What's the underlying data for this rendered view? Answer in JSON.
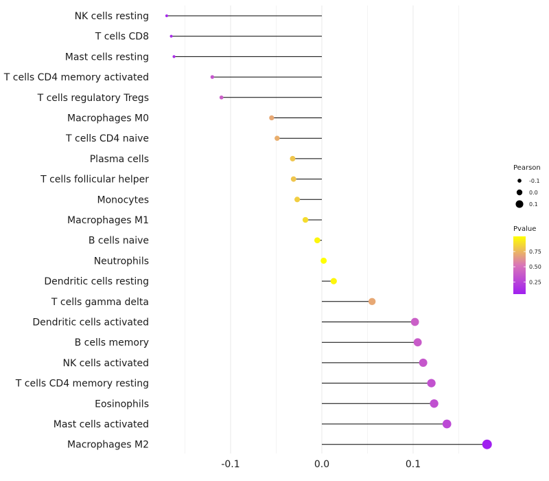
{
  "chart_data": {
    "type": "lollipop",
    "x_ticks": [
      -0.1,
      0.0,
      0.1
    ],
    "x_tick_labels": [
      "-0.1",
      "0.0",
      "0.1"
    ],
    "xlim": [
      -0.17,
      0.185
    ],
    "categories": [
      "NK cells resting",
      "T cells CD8",
      "Mast cells resting",
      "T cells CD4 memory activated",
      "T cells regulatory  Tregs",
      "Macrophages M0",
      "T cells CD4 naive",
      "Plasma cells",
      "T cells follicular helper",
      "Monocytes",
      "Macrophages M1",
      "B cells naive",
      "Neutrophils",
      "Dendritic cells resting",
      "T cells gamma delta",
      "Dendritic cells activated",
      "B cells memory",
      "NK cells activated",
      "T cells CD4 memory resting",
      "Eosinophils",
      "Mast cells activated",
      "Macrophages M2"
    ],
    "pearson": [
      -0.17,
      -0.165,
      -0.162,
      -0.12,
      -0.11,
      -0.055,
      -0.049,
      -0.032,
      -0.031,
      -0.027,
      -0.018,
      -0.005,
      0.002,
      0.013,
      0.055,
      0.102,
      0.105,
      0.111,
      0.12,
      0.123,
      0.137,
      0.181
    ],
    "pvalue": [
      0.1,
      0.12,
      0.13,
      0.35,
      0.4,
      0.7,
      0.72,
      0.8,
      0.8,
      0.83,
      0.88,
      0.97,
      1.0,
      0.97,
      0.7,
      0.4,
      0.38,
      0.36,
      0.33,
      0.32,
      0.28,
      0.05
    ],
    "legend_pearson": {
      "title": "Pearson",
      "labels": [
        "-0.1",
        "0.0",
        "0.1"
      ],
      "values": [
        -0.1,
        0.0,
        0.1
      ]
    },
    "legend_pvalue": {
      "title": "Pvalue",
      "labels": [
        "0.75",
        "0.50",
        "0.25"
      ],
      "values": [
        0.75,
        0.5,
        0.25
      ],
      "range": [
        0.05,
        1.0
      ]
    },
    "colors": {
      "low": "#a020f0",
      "mid": "#d975b8",
      "high": "#ffff00",
      "stem": "#000000",
      "grid": "#ebebeb"
    }
  }
}
